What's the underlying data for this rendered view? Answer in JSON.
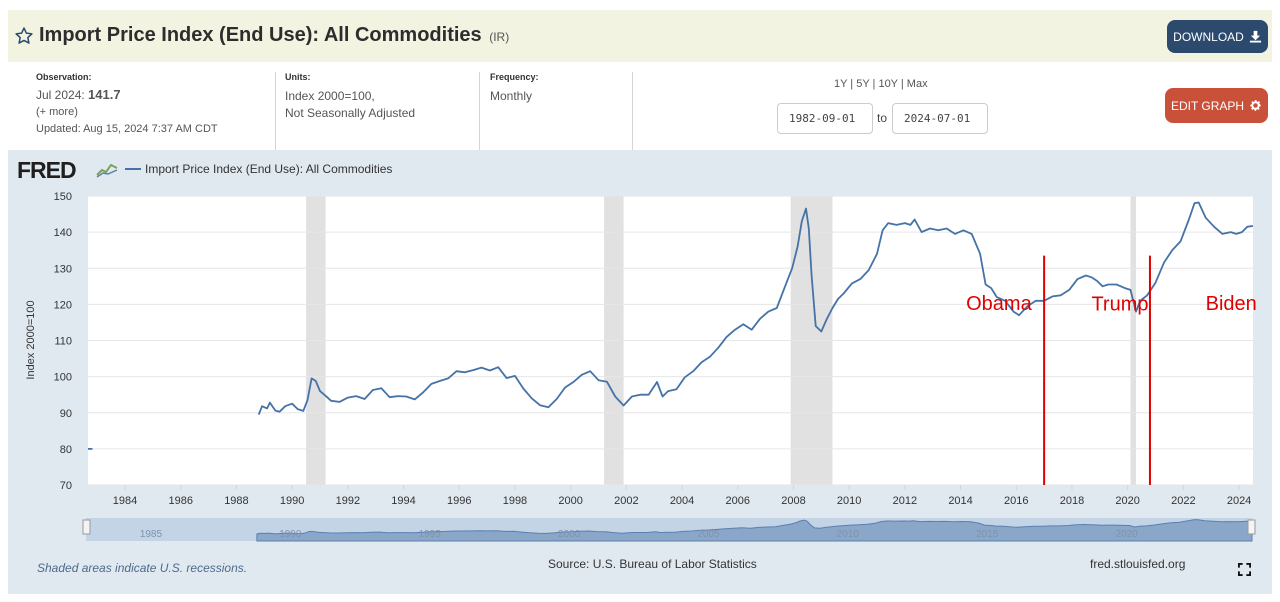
{
  "header": {
    "title": "Import Price Index (End Use): All Commodities",
    "series_code": "(IR)",
    "download_label": "DOWNLOAD",
    "edit_label": "EDIT GRAPH"
  },
  "meta": {
    "observation_label": "Observation:",
    "observation_date": "Jul 2024:",
    "observation_value": "141.7",
    "more_label": "(+ more)",
    "updated": "Updated: Aug 15, 2024 7:37 AM CDT",
    "units_label": "Units:",
    "units_line1": "Index 2000=100,",
    "units_line2": "Not Seasonally Adjusted",
    "frequency_label": "Frequency:",
    "frequency_value": "Monthly"
  },
  "range": {
    "links": "1Y | 5Y | 10Y | Max",
    "start": "1982-09-01",
    "to_label": "to",
    "end": "2024-07-01"
  },
  "logo": {
    "text": "FRED"
  },
  "footer": {
    "note": "Shaded areas indicate U.S. recessions.",
    "source": "Source: U.S. Bureau of Labor Statistics",
    "site": "fred.stlouisfed.org"
  },
  "colors": {
    "line": "#4572a7",
    "annotation": "#e00000",
    "recession": "#e1e1e1"
  },
  "chart_data": {
    "type": "line",
    "title": "Import Price Index (End Use): All Commodities",
    "legend": "Import Price Index (End Use): All Commodities",
    "ylabel": "Index 2000=100",
    "xlabel": "",
    "xlim": [
      1982.67,
      2024.5
    ],
    "ylim": [
      70,
      150
    ],
    "yticks": [
      70,
      80,
      90,
      100,
      110,
      120,
      130,
      140,
      150
    ],
    "xticks": [
      1984,
      1986,
      1988,
      1990,
      1992,
      1994,
      1996,
      1998,
      2000,
      2002,
      2004,
      2006,
      2008,
      2010,
      2012,
      2014,
      2016,
      2018,
      2020,
      2022,
      2024
    ],
    "navigator_ticks": [
      1985,
      1990,
      1995,
      2000,
      2005,
      2010,
      2015,
      2020
    ],
    "recessions": [
      [
        1990.5,
        1991.2
      ],
      [
        2001.2,
        2001.9
      ],
      [
        2007.9,
        2009.4
      ],
      [
        2020.1,
        2020.3
      ]
    ],
    "early_segment": {
      "x": [
        1982.67,
        1982.83
      ],
      "y": [
        80,
        80
      ]
    },
    "series": [
      {
        "name": "IR",
        "x": [
          1988.8,
          1988.92,
          1989.1,
          1989.2,
          1989.4,
          1989.55,
          1989.75,
          1990.0,
          1990.2,
          1990.4,
          1990.55,
          1990.7,
          1990.85,
          1991.0,
          1991.2,
          1991.4,
          1991.7,
          1992.0,
          1992.3,
          1992.6,
          1992.9,
          1993.2,
          1993.5,
          1993.8,
          1994.1,
          1994.4,
          1994.7,
          1995.0,
          1995.3,
          1995.6,
          1995.9,
          1996.2,
          1996.5,
          1996.8,
          1997.1,
          1997.4,
          1997.7,
          1998.0,
          1998.3,
          1998.6,
          1998.9,
          1999.2,
          1999.5,
          1999.8,
          2000.1,
          2000.4,
          2000.7,
          2001.0,
          2001.3,
          2001.6,
          2001.9,
          2002.2,
          2002.5,
          2002.8,
          2003.1,
          2003.3,
          2003.5,
          2003.8,
          2004.1,
          2004.4,
          2004.7,
          2005.0,
          2005.3,
          2005.6,
          2005.9,
          2006.2,
          2006.5,
          2006.8,
          2007.1,
          2007.4,
          2007.7,
          2007.95,
          2008.15,
          2008.3,
          2008.45,
          2008.55,
          2008.65,
          2008.8,
          2009.0,
          2009.2,
          2009.4,
          2009.6,
          2009.8,
          2010.1,
          2010.4,
          2010.7,
          2011.0,
          2011.2,
          2011.4,
          2011.7,
          2012.0,
          2012.2,
          2012.35,
          2012.6,
          2012.9,
          2013.2,
          2013.5,
          2013.8,
          2014.1,
          2014.4,
          2014.7,
          2014.9,
          2015.1,
          2015.3,
          2015.6,
          2015.9,
          2016.1,
          2016.4,
          2016.7,
          2017.0,
          2017.3,
          2017.6,
          2017.9,
          2018.2,
          2018.5,
          2018.7,
          2018.9,
          2019.1,
          2019.3,
          2019.6,
          2019.9,
          2020.1,
          2020.3,
          2020.45,
          2020.7,
          2021.0,
          2021.3,
          2021.6,
          2021.9,
          2022.2,
          2022.4,
          2022.55,
          2022.8,
          2023.1,
          2023.4,
          2023.7,
          2023.9,
          2024.1,
          2024.3,
          2024.5
        ],
        "y": [
          89.5,
          91.8,
          91.2,
          92.8,
          90.6,
          90.3,
          91.8,
          92.5,
          91.0,
          90.5,
          93.5,
          99.5,
          98.8,
          96.0,
          94.7,
          93.3,
          93.0,
          94.2,
          94.6,
          93.8,
          96.3,
          96.8,
          94.3,
          94.6,
          94.5,
          93.7,
          95.6,
          98.0,
          98.8,
          99.5,
          101.5,
          101.2,
          101.8,
          102.5,
          101.7,
          102.6,
          99.6,
          100.2,
          96.7,
          94.0,
          92.1,
          91.5,
          93.8,
          97.0,
          98.5,
          100.5,
          101.5,
          99.0,
          98.6,
          94.5,
          92.0,
          94.5,
          95.0,
          95.0,
          98.5,
          94.5,
          96.0,
          96.5,
          99.8,
          101.5,
          104.0,
          105.5,
          108.0,
          111.0,
          113.0,
          114.5,
          113.0,
          116.0,
          118.0,
          119.0,
          125.0,
          130.0,
          136.0,
          143.0,
          146.5,
          141.0,
          128.0,
          114.0,
          112.5,
          116.0,
          119.0,
          121.5,
          123.0,
          125.8,
          127.0,
          129.5,
          134.0,
          140.5,
          142.5,
          142.0,
          142.5,
          142.0,
          143.5,
          140.0,
          141.0,
          140.5,
          141.0,
          139.5,
          140.5,
          139.5,
          134.0,
          125.5,
          124.5,
          122.0,
          121.0,
          118.0,
          117.0,
          119.5,
          121.0,
          121.0,
          122.2,
          122.5,
          124.0,
          127.0,
          128.0,
          127.5,
          126.5,
          125.0,
          125.5,
          125.5,
          124.5,
          124.0,
          118.0,
          121.0,
          122.5,
          126.0,
          131.5,
          135.0,
          137.5,
          143.5,
          148.0,
          148.2,
          144.0,
          141.5,
          139.5,
          140.0,
          139.5,
          140.0,
          141.5,
          141.7
        ]
      }
    ],
    "annotations": [
      {
        "text": "Obama",
        "x": 2017.0,
        "label_x": 2014.2,
        "y": 118.5
      },
      {
        "text": "Trump",
        "x": 2020.8,
        "label_x": 2018.7,
        "y": 118.3
      },
      {
        "text": "Biden",
        "label_x": 2022.8,
        "y": 118.5
      }
    ]
  }
}
